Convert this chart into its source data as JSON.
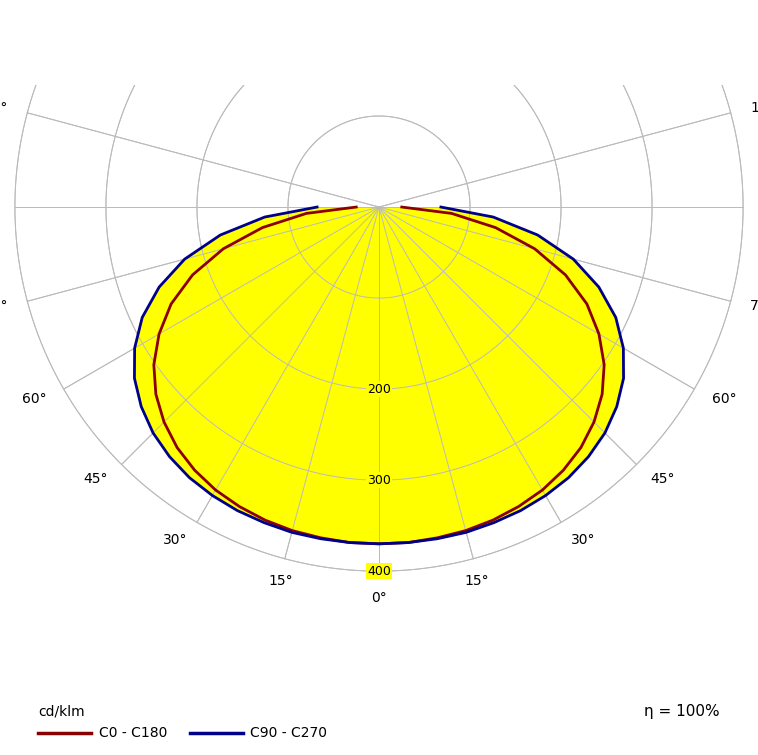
{
  "radial_max": 400,
  "radial_ticks": [
    100,
    200,
    300,
    400
  ],
  "radial_tick_labels": [
    "",
    "200",
    "300",
    "400"
  ],
  "c0_color": "#8B0000",
  "c90_color": "#00008B",
  "fill_color": "#FFFF00",
  "background_color": "#FFFFFF",
  "grid_color": "#BBBBBB",
  "legend_unit": "cd/klm",
  "legend_c0": "C0 - C180",
  "legend_c90": "C90 - C270",
  "eta_text": "η = 100%",
  "angles_deg": [
    0,
    5,
    10,
    15,
    20,
    25,
    30,
    35,
    40,
    45,
    50,
    55,
    60,
    65,
    70,
    75,
    80,
    85,
    90
  ],
  "c0_values": [
    370,
    370,
    369,
    368,
    366,
    363,
    359,
    353,
    345,
    334,
    320,
    302,
    279,
    252,
    218,
    177,
    130,
    80,
    25
  ],
  "c90_values": [
    370,
    370,
    370,
    370,
    369,
    368,
    366,
    363,
    358,
    351,
    341,
    328,
    310,
    287,
    257,
    221,
    177,
    126,
    68
  ],
  "linewidth": 2.0,
  "figwidth": 7.58,
  "figheight": 7.55
}
